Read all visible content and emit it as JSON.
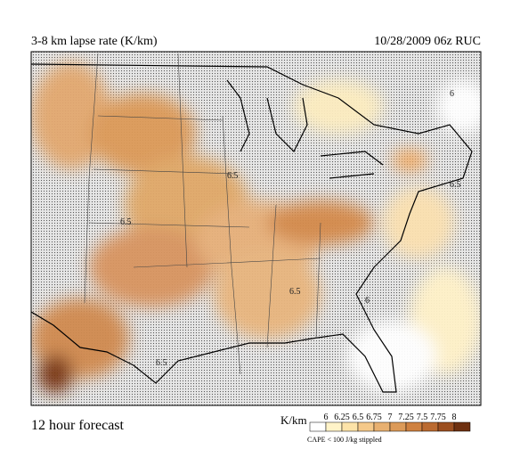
{
  "header": {
    "title": "3-8 km lapse rate (K/km)",
    "run": "10/28/2009  06z  RUC"
  },
  "footer": {
    "forecast": "12 hour forecast",
    "units": "K/km",
    "note": "CAPE < 100 J/kg stippled"
  },
  "legend": {
    "ticks": [
      "6",
      "6.25",
      "6.5",
      "6.75",
      "7",
      "7.25",
      "7.5",
      "7.75",
      "8"
    ],
    "colors": [
      "#ffffff",
      "#fff3c8",
      "#fde3a8",
      "#f5c98a",
      "#e8b070",
      "#dc9a58",
      "#cf8140",
      "#bb6a30",
      "#9c4f20",
      "#6e3010"
    ]
  },
  "map": {
    "contour_labels": [
      "6",
      "6.5",
      "6.5",
      "6.5",
      "6",
      "6.5",
      "6.5"
    ]
  }
}
